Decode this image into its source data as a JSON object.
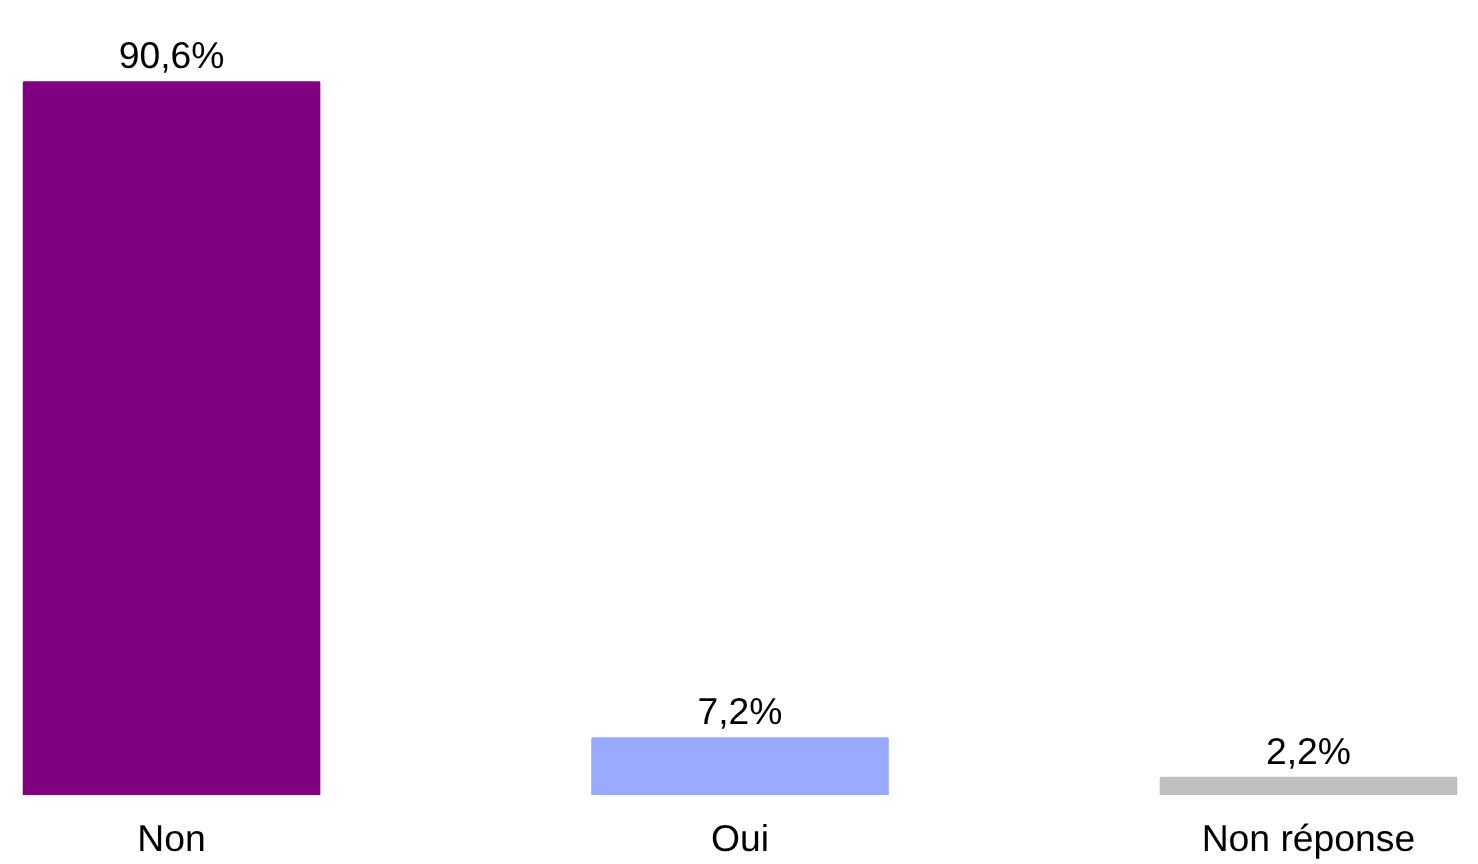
{
  "chart_data": {
    "type": "bar",
    "categories": [
      "Non",
      "Oui",
      "Non réponse"
    ],
    "values": [
      90.6,
      7.2,
      2.2
    ],
    "colors": [
      "#800080",
      "#99aaff",
      "#c0c0c0"
    ],
    "value_labels": [
      "90,6%",
      "7,2%",
      "2,2%"
    ],
    "grid": false
  }
}
